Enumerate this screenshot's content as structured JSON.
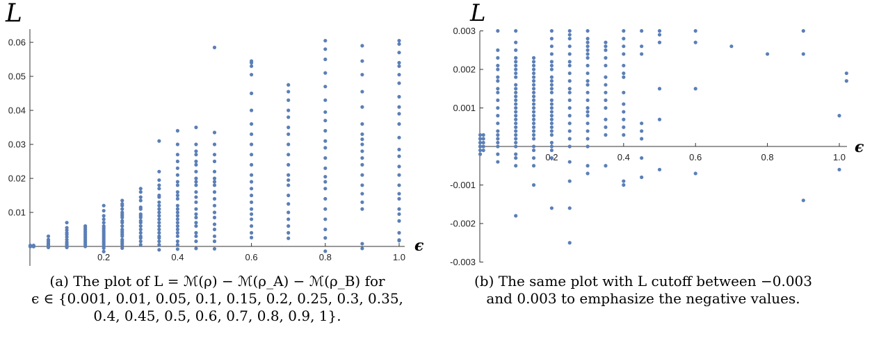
{
  "chart_data": [
    {
      "type": "scatter",
      "xlabel": "ϵ",
      "ylabel": "L",
      "xlim": [
        0,
        1.05
      ],
      "ylim": [
        -0.006,
        0.061
      ],
      "color": "#5b7fb6",
      "x_ticks": [
        "0.2",
        "0.4",
        "0.6",
        "0.8",
        "1.0"
      ],
      "y_ticks": [
        "0.01",
        "0.02",
        "0.03",
        "0.04",
        "0.05",
        "0.06"
      ],
      "points": [
        {
          "x": 0.001,
          "y": [
            0,
            0,
            0,
            0,
            0,
            0,
            0.0002,
            0.0003
          ]
        },
        {
          "x": 0.01,
          "y": [
            0,
            0,
            0,
            0,
            0,
            0,
            0,
            0.0003
          ]
        },
        {
          "x": 0.05,
          "y": [
            -0.0003,
            0,
            0.0003,
            0.0006,
            0.001,
            0.0015,
            0.002,
            0.003
          ]
        },
        {
          "x": 0.1,
          "y": [
            -0.0003,
            0,
            0.0004,
            0.0008,
            0.0013,
            0.002,
            0.0028,
            0.0035,
            0.004,
            0.0048,
            0.0055,
            0.007
          ]
        },
        {
          "x": 0.15,
          "y": [
            0,
            0.0005,
            0.001,
            0.0015,
            0.002,
            0.0025,
            0.003,
            0.0035,
            0.004,
            0.0045,
            0.005,
            0.0055,
            0.006
          ]
        },
        {
          "x": 0.2,
          "y": [
            -0.0015,
            -0.0005,
            0,
            0.0005,
            0.001,
            0.0015,
            0.002,
            0.0025,
            0.003,
            0.0035,
            0.004,
            0.0045,
            0.005,
            0.0055,
            0.006,
            0.007,
            0.008,
            0.009,
            0.0105,
            0.012
          ]
        },
        {
          "x": 0.25,
          "y": [
            -0.0005,
            0.0005,
            0.001,
            0.0015,
            0.002,
            0.003,
            0.0035,
            0.004,
            0.0045,
            0.005,
            0.006,
            0.007,
            0.0075,
            0.0085,
            0.009,
            0.0095,
            0.01,
            0.011,
            0.012,
            0.0125,
            0.0135
          ]
        },
        {
          "x": 0.3,
          "y": [
            0.0005,
            0.0015,
            0.0025,
            0.003,
            0.004,
            0.005,
            0.006,
            0.007,
            0.0075,
            0.0085,
            0.009,
            0.0095,
            0.011,
            0.0115,
            0.0135,
            0.0145,
            0.016,
            0.017
          ]
        },
        {
          "x": 0.35,
          "y": [
            -0.001,
            0.0005,
            0.0015,
            0.0025,
            0.003,
            0.004,
            0.005,
            0.006,
            0.007,
            0.008,
            0.009,
            0.01,
            0.011,
            0.012,
            0.013,
            0.0145,
            0.015,
            0.017,
            0.018,
            0.0195,
            0.022,
            0.031
          ]
        },
        {
          "x": 0.4,
          "y": [
            -0.0008,
            0.0005,
            0.0015,
            0.003,
            0.004,
            0.005,
            0.006,
            0.007,
            0.008,
            0.009,
            0.01,
            0.011,
            0.012,
            0.014,
            0.015,
            0.016,
            0.018,
            0.019,
            0.021,
            0.023,
            0.025,
            0.027,
            0.03,
            0.034
          ]
        },
        {
          "x": 0.45,
          "y": [
            -0.0006,
            0.0015,
            0.003,
            0.004,
            0.006,
            0.007,
            0.0085,
            0.0095,
            0.011,
            0.013,
            0.0145,
            0.016,
            0.018,
            0.019,
            0.02,
            0.022,
            0.024,
            0.025,
            0.027,
            0.028,
            0.03,
            0.035
          ]
        },
        {
          "x": 0.5,
          "y": [
            -0.0007,
            0.0015,
            0.003,
            0.005,
            0.0065,
            0.0085,
            0.01,
            0.012,
            0.014,
            0.016,
            0.018,
            0.019,
            0.02,
            0.022,
            0.025,
            0.027,
            0.03,
            0.0335,
            0.0585
          ]
        },
        {
          "x": 0.6,
          "y": [
            0.0026,
            0.004,
            0.006,
            0.008,
            0.0095,
            0.011,
            0.013,
            0.015,
            0.017,
            0.019,
            0.021,
            0.024,
            0.027,
            0.03,
            0.033,
            0.036,
            0.04,
            0.045,
            0.0505,
            0.053,
            0.054,
            0.0545
          ]
        },
        {
          "x": 0.7,
          "y": [
            0.0024,
            0.004,
            0.006,
            0.008,
            0.01,
            0.0125,
            0.015,
            0.018,
            0.0195,
            0.021,
            0.024,
            0.027,
            0.03,
            0.033,
            0.035,
            0.038,
            0.04,
            0.043,
            0.0455,
            0.0475
          ]
        },
        {
          "x": 0.8,
          "y": [
            -0.0014,
            0.0025,
            0.005,
            0.008,
            0.011,
            0.014,
            0.017,
            0.019,
            0.0205,
            0.023,
            0.026,
            0.029,
            0.031,
            0.034,
            0.037,
            0.0395,
            0.043,
            0.047,
            0.051,
            0.055,
            0.058,
            0.0605
          ]
        },
        {
          "x": 0.9,
          "y": [
            -0.0006,
            0.0008,
            0.011,
            0.013,
            0.0155,
            0.018,
            0.021,
            0.024,
            0.026,
            0.028,
            0.03,
            0.0315,
            0.033,
            0.036,
            0.041,
            0.0455,
            0.0505,
            0.0545,
            0.059
          ]
        },
        {
          "x": 1.0,
          "y": [
            0.0017,
            0.0019,
            0.004,
            0.0075,
            0.0095,
            0.011,
            0.014,
            0.0155,
            0.018,
            0.021,
            0.0235,
            0.0265,
            0.0285,
            0.032,
            0.036,
            0.039,
            0.041,
            0.044,
            0.048,
            0.0505,
            0.053,
            0.054,
            0.057,
            0.0595,
            0.0605
          ]
        }
      ]
    },
    {
      "type": "scatter",
      "xlabel": "ϵ",
      "ylabel": "L",
      "xlim": [
        0,
        1.02
      ],
      "ylim": [
        -0.003,
        0.003
      ],
      "color": "#5b7fb6",
      "x_ticks": [
        "0.2",
        "0.4",
        "0.6",
        "0.8",
        "1.0"
      ],
      "y_ticks": [
        "-0.003",
        "-0.002",
        "-0.001",
        "0.001",
        "0.002",
        "0.003"
      ],
      "points": [
        {
          "x": 0.001,
          "y": [
            -0.0002,
            -0.0001,
            0,
            0,
            0,
            0.0001,
            0.0001,
            0.0002,
            0.0002,
            0.0003
          ]
        },
        {
          "x": 0.01,
          "y": [
            -0.0001,
            0,
            0,
            0.0001,
            0.0002,
            0.0003
          ]
        },
        {
          "x": 0.05,
          "y": [
            -0.0004,
            -0.0002,
            0,
            0.0001,
            0.0002,
            0.0003,
            0.0004,
            0.0006,
            0.0008,
            0.001,
            0.0012,
            0.0014,
            0.0015,
            0.0017,
            0.0018,
            0.002,
            0.0021,
            0.0023,
            0.0025,
            0.003
          ]
        },
        {
          "x": 0.1,
          "y": [
            -0.0018,
            -0.0005,
            -0.0003,
            -0.0002,
            0,
            0.0001,
            0.0002,
            0.0003,
            0.0004,
            0.0005,
            0.0006,
            0.0007,
            0.0008,
            0.0009,
            0.001,
            0.0011,
            0.0012,
            0.0013,
            0.0014,
            0.0015,
            0.0016,
            0.0018,
            0.0019,
            0.002,
            0.0021,
            0.0022,
            0.0023,
            0.0025,
            0.0027,
            0.003
          ]
        },
        {
          "x": 0.15,
          "y": [
            -0.001,
            -0.0005,
            -0.0003,
            -0.0001,
            0,
            0.0002,
            0.0003,
            0.0004,
            0.0005,
            0.0006,
            0.0007,
            0.0008,
            0.0009,
            0.001,
            0.0011,
            0.0012,
            0.0013,
            0.0014,
            0.0015,
            0.0016,
            0.0017,
            0.0018,
            0.0019,
            0.002,
            0.0021,
            0.0022,
            0.0023
          ]
        },
        {
          "x": 0.2,
          "y": [
            -0.0016,
            -0.0003,
            -0.0001,
            0,
            0.0001,
            0.0003,
            0.0004,
            0.0005,
            0.0006,
            0.0007,
            0.0008,
            0.0009,
            0.001,
            0.0011,
            0.0012,
            0.0014,
            0.0015,
            0.0016,
            0.0017,
            0.0018,
            0.002,
            0.0021,
            0.0022,
            0.0024,
            0.0026,
            0.0028,
            0.003
          ]
        },
        {
          "x": 0.25,
          "y": [
            -0.0025,
            -0.0016,
            -0.0009,
            -0.0004,
            0,
            0.0002,
            0.0004,
            0.0006,
            0.0008,
            0.001,
            0.0012,
            0.0014,
            0.0015,
            0.0017,
            0.0019,
            0.0021,
            0.0022,
            0.0024,
            0.0026,
            0.0028,
            0.0029,
            0.003
          ]
        },
        {
          "x": 0.3,
          "y": [
            -0.0007,
            -0.0005,
            0,
            0.0002,
            0.0004,
            0.0006,
            0.0008,
            0.0009,
            0.001,
            0.0012,
            0.0014,
            0.0016,
            0.0017,
            0.0019,
            0.0021,
            0.0023,
            0.0024,
            0.0025,
            0.0026,
            0.0027,
            0.0028,
            0.003
          ]
        },
        {
          "x": 0.35,
          "y": [
            -0.0005,
            0.0003,
            0.0005,
            0.0007,
            0.001,
            0.0012,
            0.0014,
            0.0016,
            0.0018,
            0.0021,
            0.0023,
            0.0025,
            0.0026,
            0.0027
          ]
        },
        {
          "x": 0.4,
          "y": [
            -0.001,
            -0.0009,
            0.0003,
            0.0005,
            0.0007,
            0.0009,
            0.0011,
            0.0014,
            0.0018,
            0.0019,
            0.0021,
            0.0024,
            0.0026,
            0.0028,
            0.003
          ]
        },
        {
          "x": 0.45,
          "y": [
            -0.0008,
            -0.0003,
            0.0002,
            0.0004,
            0.0006,
            0.0024,
            0.0026,
            0.003
          ]
        },
        {
          "x": 0.5,
          "y": [
            -0.0006,
            0.0007,
            0.0015,
            0.0027,
            0.0029,
            0.003
          ]
        },
        {
          "x": 0.6,
          "y": [
            -0.0007,
            0.0015,
            0.0027,
            0.003
          ]
        },
        {
          "x": 0.7,
          "y": [
            0.0026
          ]
        },
        {
          "x": 0.8,
          "y": [
            0.0024
          ]
        },
        {
          "x": 0.9,
          "y": [
            -0.0014,
            0.0024,
            0.003
          ]
        },
        {
          "x": 1.0,
          "y": [
            -0.0006,
            0.0008
          ]
        },
        {
          "x": 1.02,
          "y": [
            0.0017,
            0.0019
          ]
        }
      ]
    }
  ],
  "captions": {
    "a": [
      "(a) The plot of L = ℳ(ρ) − ℳ(ρ_A) − ℳ(ρ_B) for",
      "ϵ ∈ {0.001, 0.01, 0.05, 0.1, 0.15, 0.2, 0.25, 0.3, 0.35,",
      "0.4, 0.45, 0.5, 0.6, 0.7, 0.8, 0.9, 1}."
    ],
    "b": [
      "(b) The same plot with L cutoff between −0.003",
      "and 0.003 to emphasize the negative values."
    ]
  }
}
